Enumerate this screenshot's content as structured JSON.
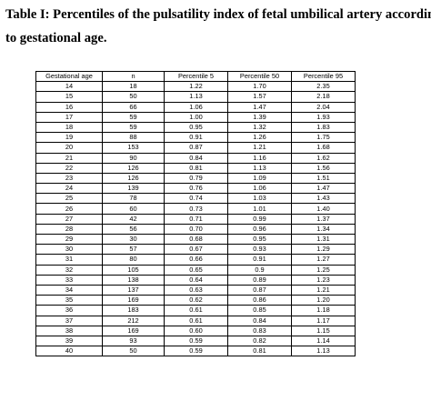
{
  "title": {
    "line1": "Table I: Percentiles of the pulsatility index of fetal umbilical artery according",
    "line2": "to gestational age."
  },
  "table": {
    "headers": [
      "Gestational age",
      "n",
      "Percentile 5",
      "Percentile 50",
      "Percentile 95"
    ],
    "rows": [
      [
        "14",
        "18",
        "1.22",
        "1.70",
        "2.35"
      ],
      [
        "15",
        "50",
        "1.13",
        "1.57",
        "2.18"
      ],
      [
        "16",
        "66",
        "1.06",
        "1.47",
        "2.04"
      ],
      [
        "17",
        "59",
        "1.00",
        "1.39",
        "1.93"
      ],
      [
        "18",
        "59",
        "0.95",
        "1.32",
        "1.83"
      ],
      [
        "19",
        "88",
        "0.91",
        "1.26",
        "1.75"
      ],
      [
        "20",
        "153",
        "0.87",
        "1.21",
        "1.68"
      ],
      [
        "21",
        "90",
        "0.84",
        "1.16",
        "1.62"
      ],
      [
        "22",
        "126",
        "0.81",
        "1.13",
        "1.56"
      ],
      [
        "23",
        "126",
        "0.79",
        "1.09",
        "1.51"
      ],
      [
        "24",
        "139",
        "0.76",
        "1.06",
        "1.47"
      ],
      [
        "25",
        "78",
        "0.74",
        "1.03",
        "1.43"
      ],
      [
        "26",
        "60",
        "0.73",
        "1.01",
        "1.40"
      ],
      [
        "27",
        "42",
        "0.71",
        "0.99",
        "1.37"
      ],
      [
        "28",
        "56",
        "0.70",
        "0.96",
        "1.34"
      ],
      [
        "29",
        "30",
        "0.68",
        "0.95",
        "1.31"
      ],
      [
        "30",
        "57",
        "0.67",
        "0.93",
        "1.29"
      ],
      [
        "31",
        "80",
        "0.66",
        "0.91",
        "1.27"
      ],
      [
        "32",
        "105",
        "0.65",
        "0.9",
        "1.25"
      ],
      [
        "33",
        "138",
        "0.64",
        "0.89",
        "1.23"
      ],
      [
        "34",
        "137",
        "0.63",
        "0.87",
        "1.21"
      ],
      [
        "35",
        "169",
        "0.62",
        "0.86",
        "1.20"
      ],
      [
        "36",
        "183",
        "0.61",
        "0.85",
        "1.18"
      ],
      [
        "37",
        "212",
        "0.61",
        "0.84",
        "1.17"
      ],
      [
        "38",
        "169",
        "0.60",
        "0.83",
        "1.15"
      ],
      [
        "39",
        "93",
        "0.59",
        "0.82",
        "1.14"
      ],
      [
        "40",
        "50",
        "0.59",
        "0.81",
        "1.13"
      ]
    ]
  }
}
